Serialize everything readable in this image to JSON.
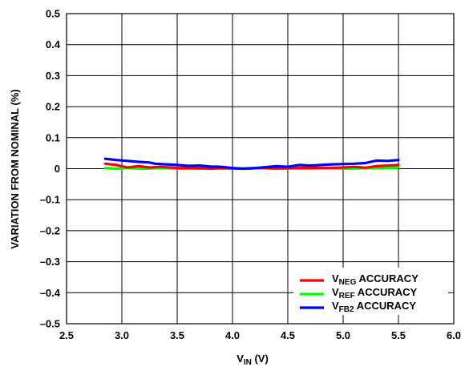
{
  "chart_data": {
    "type": "line",
    "title": "",
    "xlabel": {
      "main": "V",
      "sub": "IN",
      "unit": " (V)"
    },
    "ylabel": "VARIATION FROM NOMINAL (%)",
    "xlim": [
      2.5,
      6.0
    ],
    "ylim": [
      -0.5,
      0.5
    ],
    "x_ticks": [
      "2.5",
      "3.0",
      "3.5",
      "4.0",
      "4.5",
      "5.0",
      "5.5",
      "6.0"
    ],
    "y_ticks": [
      "0.5",
      "0.4",
      "0.3",
      "0.2",
      "0.1",
      "0",
      "–0.1",
      "–0.2",
      "–0.3",
      "–0.4",
      "–0.5"
    ],
    "grid": true,
    "legend_position": "bottom-right",
    "series": [
      {
        "name": {
          "main": "V",
          "sub": "NEG",
          "rest": " ACCURACY"
        },
        "color": "#ff0000",
        "points": [
          [
            2.85,
            0.016
          ],
          [
            2.95,
            0.012
          ],
          [
            3.05,
            0.004
          ],
          [
            3.15,
            0.008
          ],
          [
            3.25,
            0.004
          ],
          [
            3.35,
            0.006
          ],
          [
            3.5,
            0.002
          ],
          [
            3.65,
            0.002
          ],
          [
            3.8,
            0.0
          ],
          [
            3.95,
            0.002
          ],
          [
            4.1,
            0.0
          ],
          [
            4.25,
            0.002
          ],
          [
            4.4,
            0.001
          ],
          [
            4.55,
            0.002
          ],
          [
            4.7,
            0.003
          ],
          [
            4.85,
            0.002
          ],
          [
            5.0,
            0.004
          ],
          [
            5.1,
            0.006
          ],
          [
            5.2,
            0.003
          ],
          [
            5.3,
            0.008
          ],
          [
            5.4,
            0.01
          ],
          [
            5.5,
            0.012
          ]
        ]
      },
      {
        "name": {
          "main": "V",
          "sub": "REF",
          "rest": " ACCURACY"
        },
        "color": "#00ff00",
        "points": [
          [
            2.85,
            0.002
          ],
          [
            2.95,
            0.0
          ],
          [
            3.05,
            0.002
          ],
          [
            3.2,
            0.0
          ],
          [
            3.35,
            0.002
          ],
          [
            3.5,
            0.0
          ],
          [
            3.65,
            0.0
          ],
          [
            3.8,
            0.002
          ],
          [
            3.95,
            0.0
          ],
          [
            4.1,
            0.0
          ],
          [
            4.25,
            0.002
          ],
          [
            4.4,
            0.0
          ],
          [
            4.55,
            0.001
          ],
          [
            4.7,
            0.0
          ],
          [
            4.85,
            0.002
          ],
          [
            5.0,
            0.0
          ],
          [
            5.15,
            0.001
          ],
          [
            5.3,
            0.002
          ],
          [
            5.4,
            0.002
          ],
          [
            5.5,
            0.004
          ]
        ]
      },
      {
        "name": {
          "main": "V",
          "sub": "FB2",
          "rest": " ACCURACY"
        },
        "color": "#0000ff",
        "points": [
          [
            2.85,
            0.032
          ],
          [
            2.95,
            0.028
          ],
          [
            3.05,
            0.025
          ],
          [
            3.15,
            0.022
          ],
          [
            3.25,
            0.02
          ],
          [
            3.3,
            0.016
          ],
          [
            3.4,
            0.014
          ],
          [
            3.5,
            0.012
          ],
          [
            3.6,
            0.009
          ],
          [
            3.7,
            0.01
          ],
          [
            3.8,
            0.007
          ],
          [
            3.9,
            0.006
          ],
          [
            4.0,
            0.002
          ],
          [
            4.1,
            0.0
          ],
          [
            4.2,
            0.002
          ],
          [
            4.3,
            0.005
          ],
          [
            4.4,
            0.008
          ],
          [
            4.5,
            0.006
          ],
          [
            4.6,
            0.012
          ],
          [
            4.7,
            0.01
          ],
          [
            4.8,
            0.012
          ],
          [
            4.9,
            0.014
          ],
          [
            5.0,
            0.015
          ],
          [
            5.1,
            0.016
          ],
          [
            5.2,
            0.018
          ],
          [
            5.3,
            0.026
          ],
          [
            5.4,
            0.025
          ],
          [
            5.5,
            0.028
          ]
        ]
      }
    ]
  }
}
